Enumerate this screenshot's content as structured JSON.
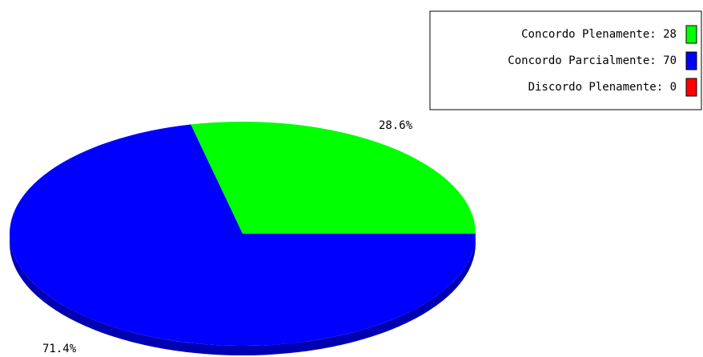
{
  "chart_data": {
    "type": "pie",
    "title": "",
    "slices": [
      {
        "label": "Concordo Plenamente",
        "value": 28,
        "color": "#00ff00",
        "percent_label": "28.6%"
      },
      {
        "label": "Concordo Parcialmente",
        "value": 70,
        "color": "#0000ff",
        "percent_label": "71.4%"
      },
      {
        "label": "Discordo Plenamente",
        "value": 0,
        "color": "#ff0000",
        "percent_label": ""
      }
    ],
    "legend": {
      "placement": "top-right",
      "entries": [
        {
          "text": "Concordo Plenamente: 28",
          "color": "#00ff00"
        },
        {
          "text": "Concordo Parcialmente: 70",
          "color": "#0000ff"
        },
        {
          "text": "Discordo Plenamente: 0",
          "color": "#ff0000"
        }
      ]
    },
    "style": "3d-tilted"
  }
}
